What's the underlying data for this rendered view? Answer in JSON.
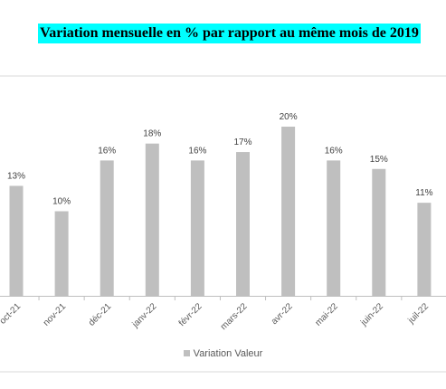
{
  "chart_data": {
    "type": "bar",
    "title": "Variation mensuelle en % par rapport au même mois de 2019",
    "categories": [
      "oct-21",
      "nov-21",
      "déc-21",
      "janv-22",
      "févr-22",
      "mars-22",
      "avr-22",
      "mai-22",
      "juin-22",
      "juil-22"
    ],
    "series": [
      {
        "name": "Variation Valeur",
        "values": [
          13,
          10,
          16,
          18,
          16,
          17,
          20,
          16,
          15,
          11
        ]
      }
    ],
    "data_labels": [
      "13%",
      "10%",
      "16%",
      "18%",
      "16%",
      "17%",
      "20%",
      "16%",
      "15%",
      "11%"
    ],
    "ylim": [
      0,
      21
    ],
    "legend_position": "bottom",
    "bar_color": "#bfbfbf",
    "grid": false
  }
}
